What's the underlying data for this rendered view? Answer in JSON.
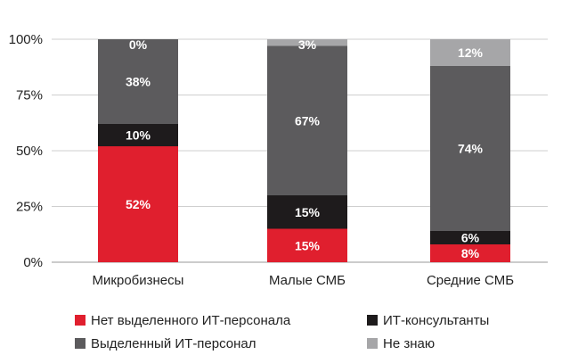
{
  "chart_data": {
    "type": "bar",
    "stacked": true,
    "categories": [
      "Микробизнесы",
      "Малые СМБ",
      "Средние СМБ"
    ],
    "series": [
      {
        "name": "Нет выделенного ИТ-персонала",
        "color": "#e01f2e",
        "values": [
          52,
          15,
          8
        ],
        "labels": [
          "52%",
          "15%",
          "8%"
        ]
      },
      {
        "name": "ИТ-консультанты",
        "color": "#1e1b1c",
        "values": [
          10,
          15,
          6
        ],
        "labels": [
          "10%",
          "15%",
          "6%"
        ]
      },
      {
        "name": "Выделенный ИТ-персонал",
        "color": "#5c5b5d",
        "values": [
          38,
          67,
          74
        ],
        "labels": [
          "38%",
          "67%",
          "74%"
        ]
      },
      {
        "name": "Не знаю",
        "color": "#a6a6a8",
        "values": [
          0,
          3,
          12
        ],
        "labels": [
          "0%",
          "3%",
          "12%"
        ]
      }
    ],
    "y_ticks": [
      {
        "value": 0,
        "label": "0%"
      },
      {
        "value": 25,
        "label": "25%"
      },
      {
        "value": 50,
        "label": "50%"
      },
      {
        "value": 75,
        "label": "75%"
      },
      {
        "value": 100,
        "label": "100%"
      }
    ],
    "ylim": [
      0,
      100
    ],
    "grid": true,
    "legend_position": "bottom",
    "legend_order": [
      0,
      1,
      2,
      3
    ]
  }
}
